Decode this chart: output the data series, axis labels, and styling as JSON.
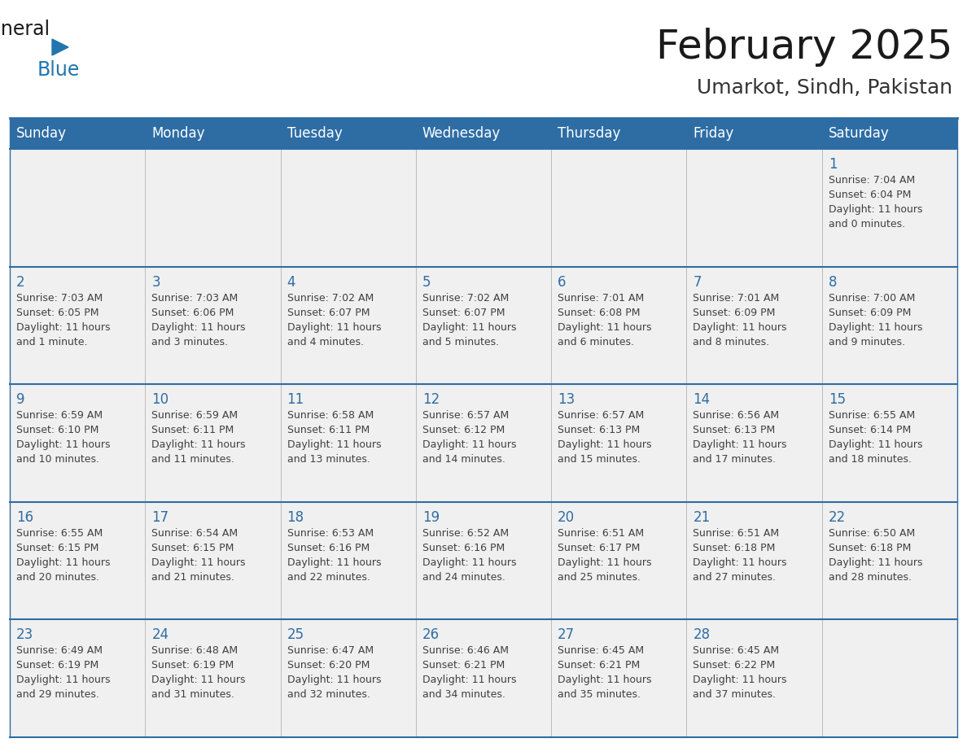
{
  "title": "February 2025",
  "subtitle": "Umarkot, Sindh, Pakistan",
  "days_of_week": [
    "Sunday",
    "Monday",
    "Tuesday",
    "Wednesday",
    "Thursday",
    "Friday",
    "Saturday"
  ],
  "header_bg": "#2E6DA4",
  "header_text": "#FFFFFF",
  "cell_bg": "#F0F0F0",
  "border_color": "#2E6DA4",
  "title_color": "#1a1a1a",
  "subtitle_color": "#333333",
  "day_num_color": "#2E6DA4",
  "cell_text_color": "#404040",
  "logo_general_color": "#1a1a1a",
  "logo_blue_color": "#2176AE",
  "calendar_data": [
    [
      null,
      null,
      null,
      null,
      null,
      null,
      {
        "day": "1",
        "sunrise": "7:04 AM",
        "sunset": "6:04 PM",
        "daylight": "11 hours\nand 0 minutes."
      }
    ],
    [
      {
        "day": "2",
        "sunrise": "7:03 AM",
        "sunset": "6:05 PM",
        "daylight": "11 hours\nand 1 minute."
      },
      {
        "day": "3",
        "sunrise": "7:03 AM",
        "sunset": "6:06 PM",
        "daylight": "11 hours\nand 3 minutes."
      },
      {
        "day": "4",
        "sunrise": "7:02 AM",
        "sunset": "6:07 PM",
        "daylight": "11 hours\nand 4 minutes."
      },
      {
        "day": "5",
        "sunrise": "7:02 AM",
        "sunset": "6:07 PM",
        "daylight": "11 hours\nand 5 minutes."
      },
      {
        "day": "6",
        "sunrise": "7:01 AM",
        "sunset": "6:08 PM",
        "daylight": "11 hours\nand 6 minutes."
      },
      {
        "day": "7",
        "sunrise": "7:01 AM",
        "sunset": "6:09 PM",
        "daylight": "11 hours\nand 8 minutes."
      },
      {
        "day": "8",
        "sunrise": "7:00 AM",
        "sunset": "6:09 PM",
        "daylight": "11 hours\nand 9 minutes."
      }
    ],
    [
      {
        "day": "9",
        "sunrise": "6:59 AM",
        "sunset": "6:10 PM",
        "daylight": "11 hours\nand 10 minutes."
      },
      {
        "day": "10",
        "sunrise": "6:59 AM",
        "sunset": "6:11 PM",
        "daylight": "11 hours\nand 11 minutes."
      },
      {
        "day": "11",
        "sunrise": "6:58 AM",
        "sunset": "6:11 PM",
        "daylight": "11 hours\nand 13 minutes."
      },
      {
        "day": "12",
        "sunrise": "6:57 AM",
        "sunset": "6:12 PM",
        "daylight": "11 hours\nand 14 minutes."
      },
      {
        "day": "13",
        "sunrise": "6:57 AM",
        "sunset": "6:13 PM",
        "daylight": "11 hours\nand 15 minutes."
      },
      {
        "day": "14",
        "sunrise": "6:56 AM",
        "sunset": "6:13 PM",
        "daylight": "11 hours\nand 17 minutes."
      },
      {
        "day": "15",
        "sunrise": "6:55 AM",
        "sunset": "6:14 PM",
        "daylight": "11 hours\nand 18 minutes."
      }
    ],
    [
      {
        "day": "16",
        "sunrise": "6:55 AM",
        "sunset": "6:15 PM",
        "daylight": "11 hours\nand 20 minutes."
      },
      {
        "day": "17",
        "sunrise": "6:54 AM",
        "sunset": "6:15 PM",
        "daylight": "11 hours\nand 21 minutes."
      },
      {
        "day": "18",
        "sunrise": "6:53 AM",
        "sunset": "6:16 PM",
        "daylight": "11 hours\nand 22 minutes."
      },
      {
        "day": "19",
        "sunrise": "6:52 AM",
        "sunset": "6:16 PM",
        "daylight": "11 hours\nand 24 minutes."
      },
      {
        "day": "20",
        "sunrise": "6:51 AM",
        "sunset": "6:17 PM",
        "daylight": "11 hours\nand 25 minutes."
      },
      {
        "day": "21",
        "sunrise": "6:51 AM",
        "sunset": "6:18 PM",
        "daylight": "11 hours\nand 27 minutes."
      },
      {
        "day": "22",
        "sunrise": "6:50 AM",
        "sunset": "6:18 PM",
        "daylight": "11 hours\nand 28 minutes."
      }
    ],
    [
      {
        "day": "23",
        "sunrise": "6:49 AM",
        "sunset": "6:19 PM",
        "daylight": "11 hours\nand 29 minutes."
      },
      {
        "day": "24",
        "sunrise": "6:48 AM",
        "sunset": "6:19 PM",
        "daylight": "11 hours\nand 31 minutes."
      },
      {
        "day": "25",
        "sunrise": "6:47 AM",
        "sunset": "6:20 PM",
        "daylight": "11 hours\nand 32 minutes."
      },
      {
        "day": "26",
        "sunrise": "6:46 AM",
        "sunset": "6:21 PM",
        "daylight": "11 hours\nand 34 minutes."
      },
      {
        "day": "27",
        "sunrise": "6:45 AM",
        "sunset": "6:21 PM",
        "daylight": "11 hours\nand 35 minutes."
      },
      {
        "day": "28",
        "sunrise": "6:45 AM",
        "sunset": "6:22 PM",
        "daylight": "11 hours\nand 37 minutes."
      },
      null
    ]
  ]
}
